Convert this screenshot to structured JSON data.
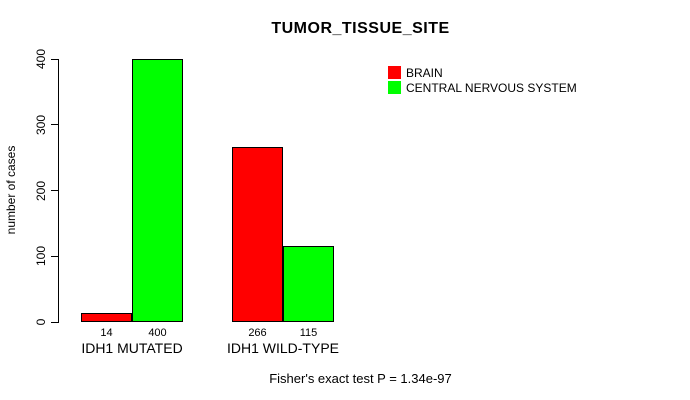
{
  "chart_data": {
    "type": "bar",
    "title": "TUMOR_TISSUE_SITE",
    "ylabel": "number of cases",
    "xlabel": "",
    "categories": [
      "IDH1 MUTATED",
      "IDH1 WILD-TYPE"
    ],
    "series": [
      {
        "name": "BRAIN",
        "color": "#ff0000",
        "values": [
          14,
          266
        ]
      },
      {
        "name": "CENTRAL NERVOUS SYSTEM",
        "color": "#00ff00",
        "values": [
          400,
          115
        ]
      }
    ],
    "bar_value_labels": [
      "14",
      "400",
      "266",
      "115"
    ],
    "ylim": [
      0,
      400
    ],
    "yticks": [
      0,
      100,
      200,
      300,
      400
    ],
    "grid": false,
    "legend_position": "top-right",
    "axis_color": "#000000",
    "bar_border_color": "#000000",
    "background_color": "#ffffff",
    "annotation": "Fisher's exact test P = 1.34e-97"
  }
}
